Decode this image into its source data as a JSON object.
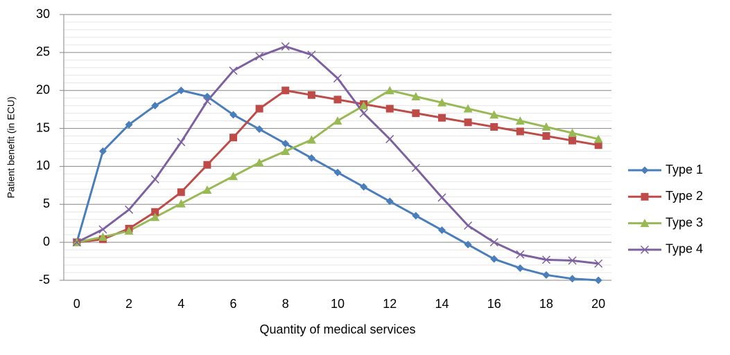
{
  "chart_data": {
    "type": "line",
    "y_label": "Patient benefit (in ECU)",
    "x_label": "Quantity of medical services",
    "x": [
      0,
      1,
      2,
      3,
      4,
      5,
      6,
      7,
      8,
      9,
      10,
      11,
      12,
      13,
      14,
      15,
      16,
      17,
      18,
      19,
      20
    ],
    "xlim": [
      -0.5,
      20.5
    ],
    "xticks": [
      0,
      2,
      4,
      6,
      8,
      10,
      12,
      14,
      16,
      18,
      20
    ],
    "ylim": [
      -5,
      30
    ],
    "yticks": [
      -5,
      0,
      5,
      10,
      15,
      20,
      25,
      30
    ],
    "grid": true,
    "legend": "right",
    "series": [
      {
        "name": "Type 1",
        "color": "#4a7ebb",
        "marker": "diamond",
        "values": [
          0,
          12,
          15.5,
          18,
          20,
          19.2,
          16.8,
          14.9,
          13,
          11.1,
          9.2,
          7.3,
          5.4,
          3.5,
          1.6,
          -0.3,
          -2.2,
          -3.4,
          -4.3,
          -4.8,
          -5.0
        ]
      },
      {
        "name": "Type 2",
        "color": "#be4b48",
        "marker": "square",
        "values": [
          0,
          0.4,
          1.8,
          4,
          6.6,
          10.2,
          13.8,
          17.6,
          20,
          19.4,
          18.8,
          18.2,
          17.6,
          17.0,
          16.4,
          15.8,
          15.2,
          14.6,
          14.0,
          13.4,
          12.8
        ]
      },
      {
        "name": "Type 3",
        "color": "#98b954",
        "marker": "triangle",
        "values": [
          0,
          0.7,
          1.5,
          3.3,
          5.1,
          6.9,
          8.7,
          10.5,
          12,
          13.5,
          16,
          18,
          20,
          19.2,
          18.4,
          17.6,
          16.8,
          16.0,
          15.2,
          14.4,
          13.6
        ]
      },
      {
        "name": "Type 4",
        "color": "#7d60a0",
        "marker": "x",
        "values": [
          0,
          1.7,
          4.3,
          8.3,
          13.2,
          18.6,
          22.6,
          24.5,
          25.8,
          24.7,
          21.6,
          17,
          13.6,
          9.8,
          5.9,
          2.2,
          0,
          -1.6,
          -2.3,
          -2.4,
          -2.8
        ]
      }
    ]
  }
}
